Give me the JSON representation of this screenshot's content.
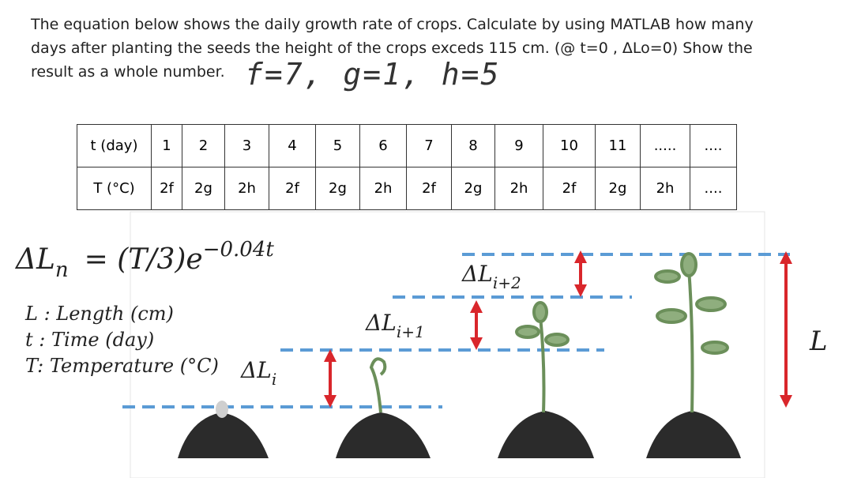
{
  "question": {
    "lines": [
      "The equation below shows the daily growth rate of crops. Calculate by using MATLAB how many",
      "days after planting the seeds the height of the crops exceds 115 cm. (@ t=0 , ΔLo=0) Show the",
      "result as a whole number."
    ],
    "handwritten": "f=7, g=1, h=5"
  },
  "table": {
    "rows": [
      [
        "t (day)",
        "1",
        "2",
        "3",
        "4",
        "5",
        "6",
        "7",
        "8",
        "9",
        "10",
        "11",
        ".....",
        "...."
      ],
      [
        "T (°C)",
        "2f",
        "2g",
        "2h",
        "2f",
        "2g",
        "2h",
        "2f",
        "2g",
        "2h",
        "2f",
        "2g",
        "2h",
        "...."
      ]
    ]
  },
  "equation": {
    "lhs": "ΔL",
    "lhs_sub": "n",
    "rhs": "= (T/3)e",
    "exponent": "−0.04t"
  },
  "legend": [
    "L : Length (cm)",
    "t : Time (day)",
    "T: Temperature (°C)"
  ],
  "figure": {
    "labels": [
      {
        "main": "ΔL",
        "sub": "i"
      },
      {
        "main": "ΔL",
        "sub": "i+1"
      },
      {
        "main": "ΔL",
        "sub": "i+2"
      }
    ],
    "total": "L"
  }
}
